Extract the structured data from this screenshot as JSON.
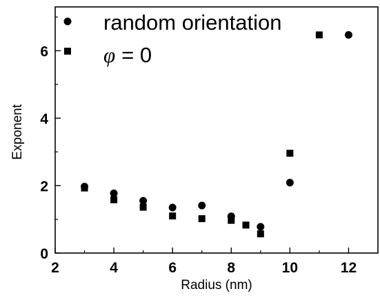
{
  "chart_data": {
    "type": "scatter",
    "xlabel": "Radius (nm)",
    "ylabel": "Exponent",
    "xlim": [
      2,
      13
    ],
    "ylim": [
      0,
      7.3
    ],
    "xticks": [
      "2",
      "4",
      "6",
      "8",
      "10",
      "12"
    ],
    "yticks": [
      "0",
      "2",
      "4",
      "6"
    ],
    "grid": false,
    "legend_position": "top-left",
    "series": [
      {
        "name": "random orientation",
        "marker": "circle",
        "color": "#000000",
        "x": [
          3,
          4,
          5,
          6,
          7,
          8,
          9,
          10,
          12
        ],
        "y": [
          1.97,
          1.77,
          1.55,
          1.35,
          1.41,
          1.09,
          0.78,
          2.09,
          6.47
        ]
      },
      {
        "name": "= 0",
        "name_symbol": "φ",
        "marker": "square",
        "color": "#000000",
        "x": [
          3,
          4,
          5,
          6,
          7,
          8,
          8.5,
          9,
          10,
          11
        ],
        "y": [
          1.93,
          1.58,
          1.36,
          1.1,
          1.02,
          0.97,
          0.83,
          0.57,
          2.96,
          6.47
        ]
      }
    ]
  }
}
